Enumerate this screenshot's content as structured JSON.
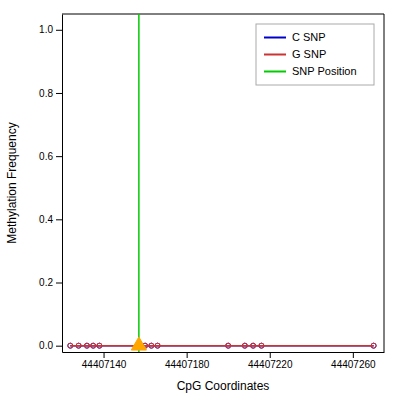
{
  "chart_data": {
    "type": "line",
    "xlabel": "CpG Coordinates",
    "ylabel": "Methylation Frequency",
    "x": [
      44407124,
      44407128,
      44407132,
      44407135,
      44407138,
      44407160,
      44407163,
      44407166,
      44407200,
      44407208,
      44407212,
      44407216,
      44407270
    ],
    "series": [
      {
        "name": "C SNP",
        "color": "#0000cc",
        "marker": "circle",
        "values": [
          0.0,
          0.0,
          0.0,
          0.0,
          0.0,
          0.0,
          0.0,
          0.0,
          0.0,
          0.0,
          0.0,
          0.0,
          0.0
        ]
      },
      {
        "name": "G SNP",
        "color": "#cc3333",
        "marker": "circle",
        "values": [
          0.0,
          0.0,
          0.0,
          0.0,
          0.0,
          0.0,
          0.0,
          0.0,
          0.0,
          0.0,
          0.0,
          0.0,
          0.0
        ]
      }
    ],
    "vlines": [
      {
        "name": "SNP Position",
        "value": 44407157,
        "color": "#00cc00"
      }
    ],
    "markers": [
      {
        "x": 44407157,
        "y": 0.0,
        "color": "#FFA500",
        "marker": "triangle"
      }
    ],
    "xlim": [
      44407120,
      44407275
    ],
    "ylim": [
      -0.02,
      1.05
    ],
    "xticks": [
      44407140,
      44407180,
      44407220,
      44407260
    ],
    "yticks": [
      {
        "value": 0.0,
        "label": "0.0"
      },
      0.2,
      0.4,
      0.6,
      0.8,
      {
        "value": 1.0,
        "label": "1.0"
      }
    ],
    "grid": false,
    "legend": "upper right"
  }
}
